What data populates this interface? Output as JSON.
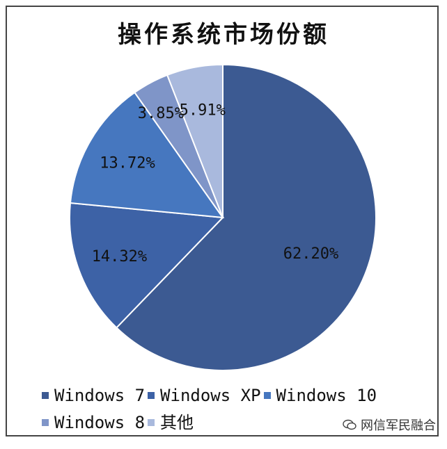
{
  "chart_data": {
    "type": "pie",
    "title": "操作系统市场份额",
    "categories": [
      "Windows 7",
      "Windows XP",
      "Windows 10",
      "Windows 8",
      "其他"
    ],
    "values": [
      62.2,
      14.32,
      13.72,
      3.85,
      5.91
    ],
    "labels": [
      "62.20%",
      "14.32%",
      "13.72%",
      "3.85%",
      "5.91%"
    ],
    "colors": [
      "#3c5a92",
      "#3d62a6",
      "#4677bf",
      "#7f95c8",
      "#a9b9dd"
    ],
    "legend_position": "bottom"
  },
  "watermark": {
    "text": "网信军民融合",
    "icon": "wechat-icon"
  }
}
